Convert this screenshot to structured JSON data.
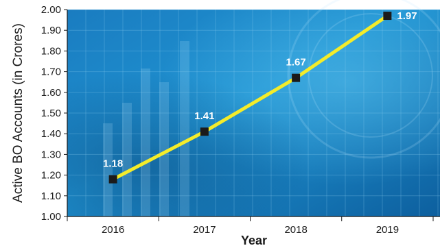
{
  "chart_data": {
    "type": "line",
    "categories": [
      "2016",
      "2017",
      "2018",
      "2019"
    ],
    "values": [
      1.18,
      1.41,
      1.67,
      1.97
    ],
    "data_labels": [
      "1.18",
      "1.41",
      "1.67",
      "1.97"
    ],
    "title": "",
    "xlabel": "Year",
    "ylabel": "Active BO Accounts (in Crores)",
    "ylim": [
      1.0,
      2.0
    ],
    "yticks": [
      "1.00",
      "1.10",
      "1.20",
      "1.30",
      "1.40",
      "1.50",
      "1.60",
      "1.70",
      "1.80",
      "1.90",
      "2.00"
    ],
    "grid": true,
    "legend": "none",
    "colors": {
      "line": "#f4ec2a",
      "marker": "#1b1b1b",
      "background_dark": "#0d4f8f",
      "background_light": "#2aa3db"
    }
  }
}
